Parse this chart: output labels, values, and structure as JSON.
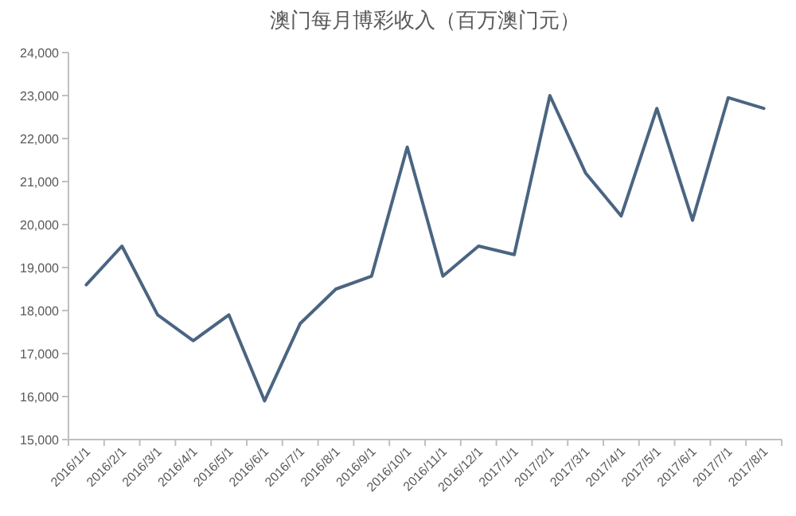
{
  "chart_data": {
    "type": "line",
    "title": "澳门每月博彩收入（百万澳门元）",
    "categories": [
      "2016/1/1",
      "2016/2/1",
      "2016/3/1",
      "2016/4/1",
      "2016/5/1",
      "2016/6/1",
      "2016/7/1",
      "2016/8/1",
      "2016/9/1",
      "2016/10/1",
      "2016/11/1",
      "2016/12/1",
      "2017/1/1",
      "2017/2/1",
      "2017/3/1",
      "2017/4/1",
      "2017/5/1",
      "2017/6/1",
      "2017/7/1",
      "2017/8/1"
    ],
    "series": [
      {
        "color": "#4a6582",
        "values": [
          18600,
          19500,
          17900,
          17300,
          17900,
          15900,
          17700,
          18500,
          18800,
          21800,
          18800,
          19500,
          19300,
          23000,
          21200,
          20200,
          22700,
          20100,
          22950,
          22700
        ]
      }
    ],
    "ylim": [
      15000,
      24000
    ],
    "yticks": [
      {
        "value": 15000,
        "label": "15,000"
      },
      {
        "value": 16000,
        "label": "16,000"
      },
      {
        "value": 17000,
        "label": "17,000"
      },
      {
        "value": 18000,
        "label": "18,000"
      },
      {
        "value": 19000,
        "label": "19,000"
      },
      {
        "value": 20000,
        "label": "20,000"
      },
      {
        "value": 21000,
        "label": "21,000"
      },
      {
        "value": 22000,
        "label": "22,000"
      },
      {
        "value": 23000,
        "label": "23,000"
      },
      {
        "value": 24000,
        "label": "24,000"
      }
    ],
    "grid": false,
    "marker": "none",
    "line_style": "solid"
  }
}
